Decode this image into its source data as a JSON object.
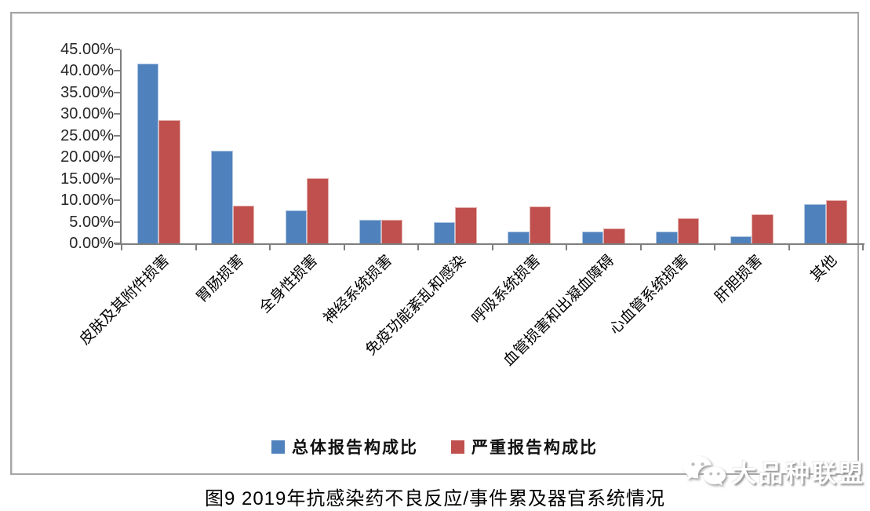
{
  "chart_data": {
    "type": "bar",
    "title": "图9 2019年抗感染药不良反应/事件累及器官系统情况",
    "categories": [
      "皮肤及其附件损害",
      "胃肠损害",
      "全身性损害",
      "神经系统损害",
      "免疫功能紊乱和感染",
      "呼吸系统损害",
      "血管损害和出凝血障碍",
      "心血管系统损害",
      "肝胆损害",
      "其他"
    ],
    "series": [
      {
        "name": "总体报告构成比",
        "color": "#4F81BD",
        "values": [
          41.8,
          21.5,
          7.7,
          5.4,
          5.0,
          2.8,
          2.8,
          2.7,
          1.7,
          9.1
        ]
      },
      {
        "name": "严重报告构成比",
        "color": "#C0504D",
        "values": [
          28.6,
          8.8,
          15.1,
          5.4,
          8.4,
          8.5,
          3.4,
          5.9,
          6.7,
          10.0
        ]
      }
    ],
    "ylabel": "",
    "xlabel": "",
    "ylim": [
      0,
      45
    ],
    "y_tick_labels": [
      "45.00%",
      "40.00%",
      "35.00%",
      "30.00%",
      "25.00%",
      "20.00%",
      "15.00%",
      "10.00%",
      "5.00%",
      "0.00%"
    ],
    "grid": false,
    "legend_position": "bottom",
    "x_label_rotation_deg": 45
  },
  "watermark": {
    "label": "大品种联盟",
    "icon": "wechat-icon"
  }
}
